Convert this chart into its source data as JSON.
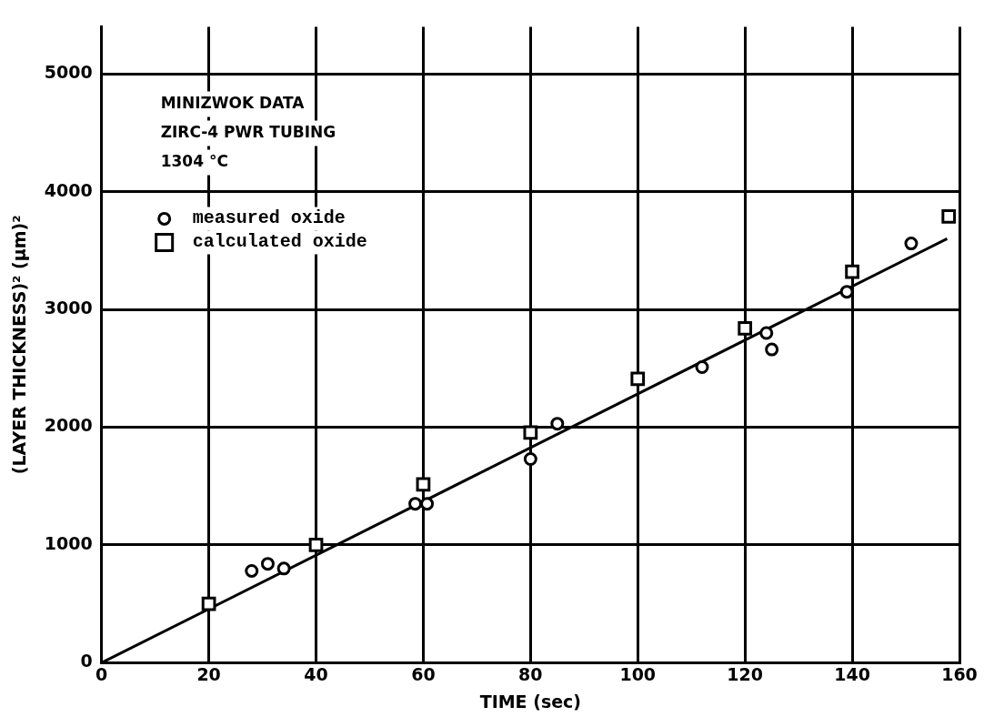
{
  "chart_data": {
    "type": "scatter",
    "xlabel": "TIME (sec)",
    "ylabel": "(LAYER THICKNESS)² (μm)²",
    "annotations": [
      "MINIZWOK DATA",
      "ZIRC-4 PWR TUBING",
      "1304 °C"
    ],
    "xlim": [
      0,
      160
    ],
    "xticks": [
      0,
      20,
      40,
      60,
      80,
      100,
      120,
      140,
      160
    ],
    "ylim": [
      0,
      5400
    ],
    "yticks": [
      0,
      1000,
      2000,
      3000,
      4000,
      5000
    ],
    "grid": true,
    "legend": "top left",
    "series": [
      {
        "name": "measured oxide",
        "marker": "circle",
        "color": "#000000",
        "x": [
          28,
          31,
          34,
          58.5,
          60.7,
          80,
          85,
          112,
          124,
          125,
          139,
          151
        ],
        "values": [
          780,
          840,
          800,
          1350,
          1350,
          1730,
          2030,
          2510,
          2800,
          2660,
          3150,
          3560
        ]
      },
      {
        "name": "calculated oxide",
        "marker": "square",
        "color": "#000000",
        "x": [
          20,
          40,
          60,
          80,
          100,
          120,
          140,
          158
        ],
        "values": [
          500,
          1000,
          1515,
          1955,
          2410,
          2840,
          3320,
          3790
        ]
      },
      {
        "type": "line",
        "marker": "none",
        "color": "#000000",
        "x": [
          0,
          157.7
        ],
        "values": [
          0,
          3600
        ]
      }
    ]
  }
}
